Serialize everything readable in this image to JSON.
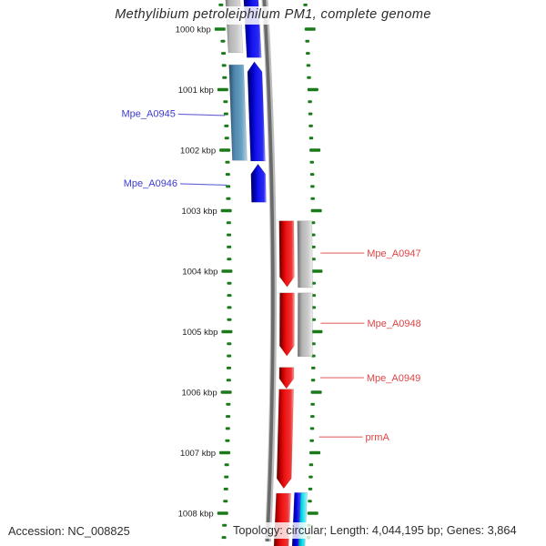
{
  "title": "Methylibium petroleiphilum PM1, complete genome",
  "footer": {
    "accession": "Accession: NC_008825",
    "topology": "Topology: circular; Length: 4,044,195 bp; Genes: 3,864"
  },
  "axis": {
    "unit": "kbp",
    "minor_step_kbp": 0.2,
    "ticks": [
      {
        "kbp": 1000,
        "label": "1000 kbp"
      },
      {
        "kbp": 1001,
        "label": "1001 kbp"
      },
      {
        "kbp": 1002,
        "label": "1002 kbp"
      },
      {
        "kbp": 1003,
        "label": "1003 kbp"
      },
      {
        "kbp": 1004,
        "label": "1004 kbp"
      },
      {
        "kbp": 1005,
        "label": "1005 kbp"
      },
      {
        "kbp": 1006,
        "label": "1006 kbp"
      },
      {
        "kbp": 1007,
        "label": "1007 kbp"
      },
      {
        "kbp": 1008,
        "label": "1008 kbp"
      }
    ]
  },
  "colors": {
    "gene_red": "#ee1111",
    "gene_blue": "#1414ee",
    "gene_steel": "#4f86ad",
    "gene_silver": "#c2c2c2",
    "gene_navy": "#0000e6",
    "gene_cyan": "#00d9e6",
    "tick_green": "#1a7a1a",
    "label_blue": "#3b3bd0",
    "label_red": "#e04444",
    "backbone_gray": "#8a8a8a"
  },
  "genome": {
    "genes": [
      {
        "name": "",
        "color": "silver",
        "side": "left",
        "lane": 2,
        "start_kbp": 999.2,
        "end_kbp": 1000.39,
        "arrow": "none"
      },
      {
        "name": "",
        "color": "blue",
        "side": "left",
        "lane": 1,
        "start_kbp": 999.2,
        "end_kbp": 1000.47,
        "arrow": "none"
      },
      {
        "name": "",
        "color": "steel",
        "side": "left",
        "lane": 2,
        "start_kbp": 1000.59,
        "end_kbp": 1002.17,
        "arrow": "none"
      },
      {
        "name": "Mpe_A0945",
        "color": "blue",
        "side": "left",
        "lane": 1,
        "start_kbp": 1000.54,
        "end_kbp": 1002.18,
        "arrow": "up"
      },
      {
        "name": "Mpe_A0946",
        "color": "blue",
        "side": "left",
        "lane": 1,
        "start_kbp": 1002.23,
        "end_kbp": 1002.86,
        "arrow": "up"
      },
      {
        "name": "Mpe_A0947",
        "color": "red",
        "side": "right",
        "lane": 1,
        "start_kbp": 1003.17,
        "end_kbp": 1004.26,
        "arrow": "down"
      },
      {
        "name": "",
        "color": "silver",
        "side": "right",
        "lane": 2,
        "start_kbp": 1003.17,
        "end_kbp": 1004.27,
        "arrow": "none"
      },
      {
        "name": "Mpe_A0948",
        "color": "red",
        "side": "right",
        "lane": 1,
        "start_kbp": 1004.36,
        "end_kbp": 1005.4,
        "arrow": "down"
      },
      {
        "name": "",
        "color": "silver",
        "side": "right",
        "lane": 2,
        "start_kbp": 1004.36,
        "end_kbp": 1005.41,
        "arrow": "none"
      },
      {
        "name": "Mpe_A0949",
        "color": "red",
        "side": "right",
        "lane": 1,
        "start_kbp": 1005.59,
        "end_kbp": 1005.94,
        "arrow": "down"
      },
      {
        "name": "prmA",
        "color": "red",
        "side": "right",
        "lane": 1,
        "start_kbp": 1005.95,
        "end_kbp": 1007.59,
        "arrow": "down"
      },
      {
        "name": "",
        "color": "red",
        "side": "right",
        "lane": 1,
        "start_kbp": 1007.67,
        "end_kbp": 1008.7,
        "arrow": "none"
      },
      {
        "name": "",
        "color": "navy",
        "side": "right",
        "lane": 2,
        "start_kbp": 1007.66,
        "end_kbp": 1008.7,
        "arrow": "none",
        "shift": 0,
        "width": 7
      },
      {
        "name": "",
        "color": "cyan",
        "side": "right",
        "lane": 2,
        "start_kbp": 1007.66,
        "end_kbp": 1008.7,
        "arrow": "none",
        "shift": 7,
        "width": 7
      }
    ],
    "labels": [
      {
        "text": "Mpe_A0945",
        "color": "blue",
        "side": "left",
        "anchor_kbp": 1001.39
      },
      {
        "text": "Mpe_A0946",
        "color": "blue",
        "side": "left",
        "anchor_kbp": 1002.54
      },
      {
        "text": "Mpe_A0947",
        "color": "red",
        "side": "right",
        "anchor_kbp": 1003.7
      },
      {
        "text": "Mpe_A0948",
        "color": "red",
        "side": "right",
        "anchor_kbp": 1004.86
      },
      {
        "text": "Mpe_A0949",
        "color": "red",
        "side": "right",
        "anchor_kbp": 1005.76
      },
      {
        "text": "prmA",
        "color": "red",
        "side": "right",
        "anchor_kbp": 1006.74
      }
    ]
  }
}
